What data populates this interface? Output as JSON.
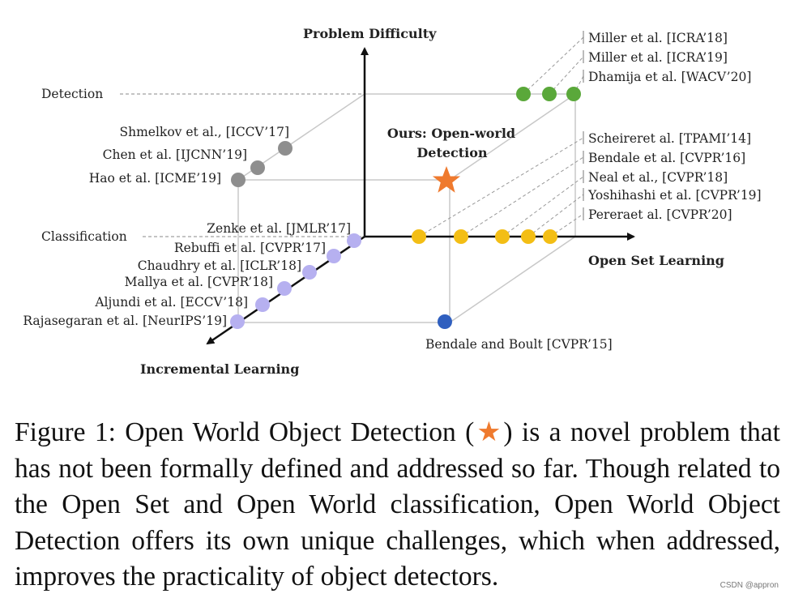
{
  "figure": {
    "axes": {
      "y_title": "Problem Difficulty",
      "x_title": "Open Set Learning",
      "z_title": "Incremental Learning"
    },
    "levels": {
      "detection": "Detection",
      "classification": "Classification"
    },
    "origin_label": "Bendale and Boult [CVPR’15]",
    "ours_label_1": "Ours: Open-world",
    "ours_label_2": "Detection",
    "groups": {
      "open_world_detection": {
        "color": "#5aa83a",
        "refs": [
          "Miller et al. [ICRA’18]",
          "Miller et al. [ICRA’19]",
          "Dhamija et al. [WACV’20]"
        ]
      },
      "open_set_classification": {
        "color": "#f3be15",
        "refs": [
          "Scheireret al. [TPAMI’14]",
          "Bendale et al. [CVPR’16]",
          "Neal et al., [CVPR’18]",
          "Yoshihashi et al. [CVPR’19]",
          "Pereraet al. [CVPR’20]"
        ]
      },
      "incremental_classification": {
        "color": "#b6b0f0",
        "refs": [
          "Zenke et al. [JMLR’17]",
          "Rebuffi et al. [CVPR’17]",
          "Chaudhry et al. [ICLR’18]",
          "Mallya et al. [CVPR’18]",
          "Aljundi et al. [ECCV’18]",
          "Rajasegaran et al. [NeurIPS’19]"
        ]
      },
      "incremental_detection": {
        "color": "#8e8e8e",
        "refs": [
          "Shmelkov et al., [ICCV’17]",
          "Chen et al. [IJCNN’19]",
          "Hao et al. [ICME’19]"
        ]
      }
    },
    "origin_color": "#2f5fbf",
    "star_color": "#ef7a2e"
  },
  "caption": {
    "prefix": "Figure 1:  Open World Object Detection (",
    "star_glyph": "★",
    "suffix": ") is a novel problem that has not been formally defined and addressed so far.  Though related to the Open Set and Open World classification, Open World Object Detection offers its own unique challenges, which when addressed, improves the practicality of object detectors."
  },
  "watermark": "CSDN @appron"
}
